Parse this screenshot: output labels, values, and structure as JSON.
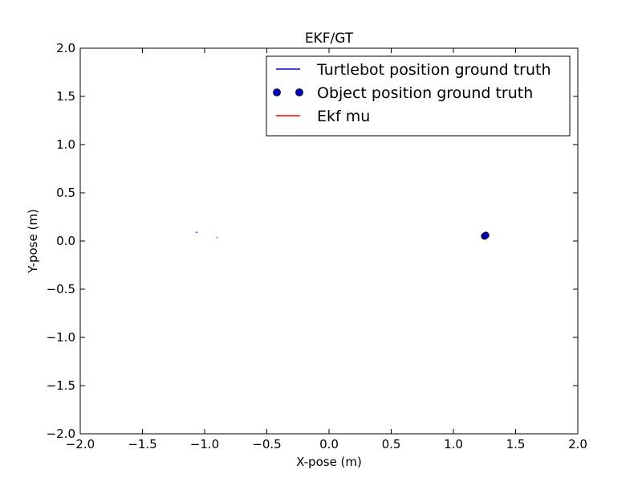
{
  "chart_data": {
    "type": "line",
    "title": "EKF/GT",
    "xlabel": "X-pose (m)",
    "ylabel": "Y-pose (m)",
    "xlim": [
      -2.0,
      2.0
    ],
    "ylim": [
      -2.0,
      2.0
    ],
    "xticks": [
      -2.0,
      -1.5,
      -1.0,
      -0.5,
      0.0,
      0.5,
      1.0,
      1.5,
      2.0
    ],
    "yticks": [
      -2.0,
      -1.5,
      -1.0,
      -0.5,
      0.0,
      0.5,
      1.0,
      1.5,
      2.0
    ],
    "xtick_labels": [
      "−2.0",
      "−1.5",
      "−1.0",
      "−0.5",
      "0.0",
      "0.5",
      "1.0",
      "1.5",
      "2.0"
    ],
    "ytick_labels": [
      "−2.0",
      "−1.5",
      "−1.0",
      "−0.5",
      "0.0",
      "0.5",
      "1.0",
      "1.5",
      "2.0"
    ],
    "grid": false,
    "legend_position": "top-right",
    "series": [
      {
        "name": "Turtlebot position ground truth",
        "marker": "line",
        "color": "#0000ff",
        "x": [
          -1.07,
          -1.06
        ],
        "y": [
          0.09,
          0.09
        ]
      },
      {
        "name": "Object position ground truth",
        "marker": "circle",
        "color": "#0000cc",
        "x": [
          1.25,
          1.26
        ],
        "y": [
          0.05,
          0.06
        ]
      },
      {
        "name": "Ekf mu",
        "marker": "line",
        "color": "#ff0000",
        "x": [
          -0.9,
          -0.9
        ],
        "y": [
          0.03,
          0.04
        ]
      }
    ]
  }
}
